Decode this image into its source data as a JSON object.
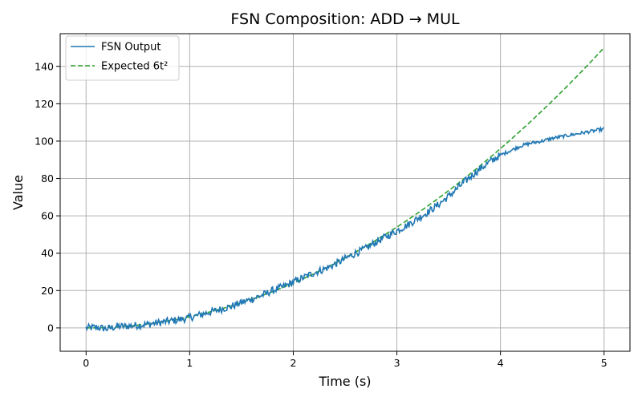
{
  "chart_data": {
    "type": "line",
    "title": "FSN Composition: ADD → MUL",
    "xlabel": "Time (s)",
    "ylabel": "Value",
    "xlim": [
      -0.25,
      5.25
    ],
    "ylim": [
      -12.5,
      157.5
    ],
    "xticks": [
      0,
      1,
      2,
      3,
      4,
      5
    ],
    "xtick_labels": [
      "0",
      "1",
      "2",
      "3",
      "4",
      "5"
    ],
    "yticks": [
      0,
      20,
      40,
      60,
      80,
      100,
      120,
      140
    ],
    "ytick_labels": [
      "0",
      "20",
      "40",
      "60",
      "80",
      "100",
      "120",
      "140"
    ],
    "grid": true,
    "legend_position": "top-left",
    "series": [
      {
        "name": "FSN Output",
        "style": "solid",
        "color": "#1f77b4",
        "x": [
          0,
          0.1,
          0.2,
          0.3,
          0.4,
          0.5,
          0.6,
          0.7,
          0.8,
          0.9,
          1.0,
          1.1,
          1.2,
          1.3,
          1.4,
          1.5,
          1.6,
          1.7,
          1.8,
          1.9,
          2.0,
          2.1,
          2.2,
          2.3,
          2.4,
          2.5,
          2.6,
          2.7,
          2.8,
          2.9,
          3.0,
          3.1,
          3.2,
          3.3,
          3.4,
          3.5,
          3.6,
          3.7,
          3.8,
          3.9,
          4.0,
          4.1,
          4.2,
          4.3,
          4.4,
          4.5,
          4.6,
          4.7,
          4.8,
          4.9,
          5.0
        ],
        "y": [
          0,
          0.3,
          -0.5,
          0.8,
          1.0,
          1.4,
          2.0,
          2.8,
          3.6,
          4.4,
          5.5,
          7.0,
          8.5,
          10.0,
          11.5,
          13.5,
          15.5,
          17.5,
          20.0,
          22.0,
          24.5,
          27.0,
          29.5,
          31.5,
          34.0,
          37.0,
          40.0,
          42.5,
          46.0,
          49.0,
          52.0,
          55.0,
          58.5,
          62.0,
          66.0,
          70.5,
          75.5,
          80.5,
          85.0,
          89.0,
          92.5,
          95.0,
          97.5,
          99.0,
          100.0,
          101.5,
          102.5,
          103.5,
          104.5,
          105.5,
          106.5
        ]
      },
      {
        "name": "Expected 6t²",
        "style": "dashed",
        "color": "#2ca02c",
        "formula": "6*t^2",
        "x_range": [
          0,
          5
        ]
      }
    ]
  }
}
